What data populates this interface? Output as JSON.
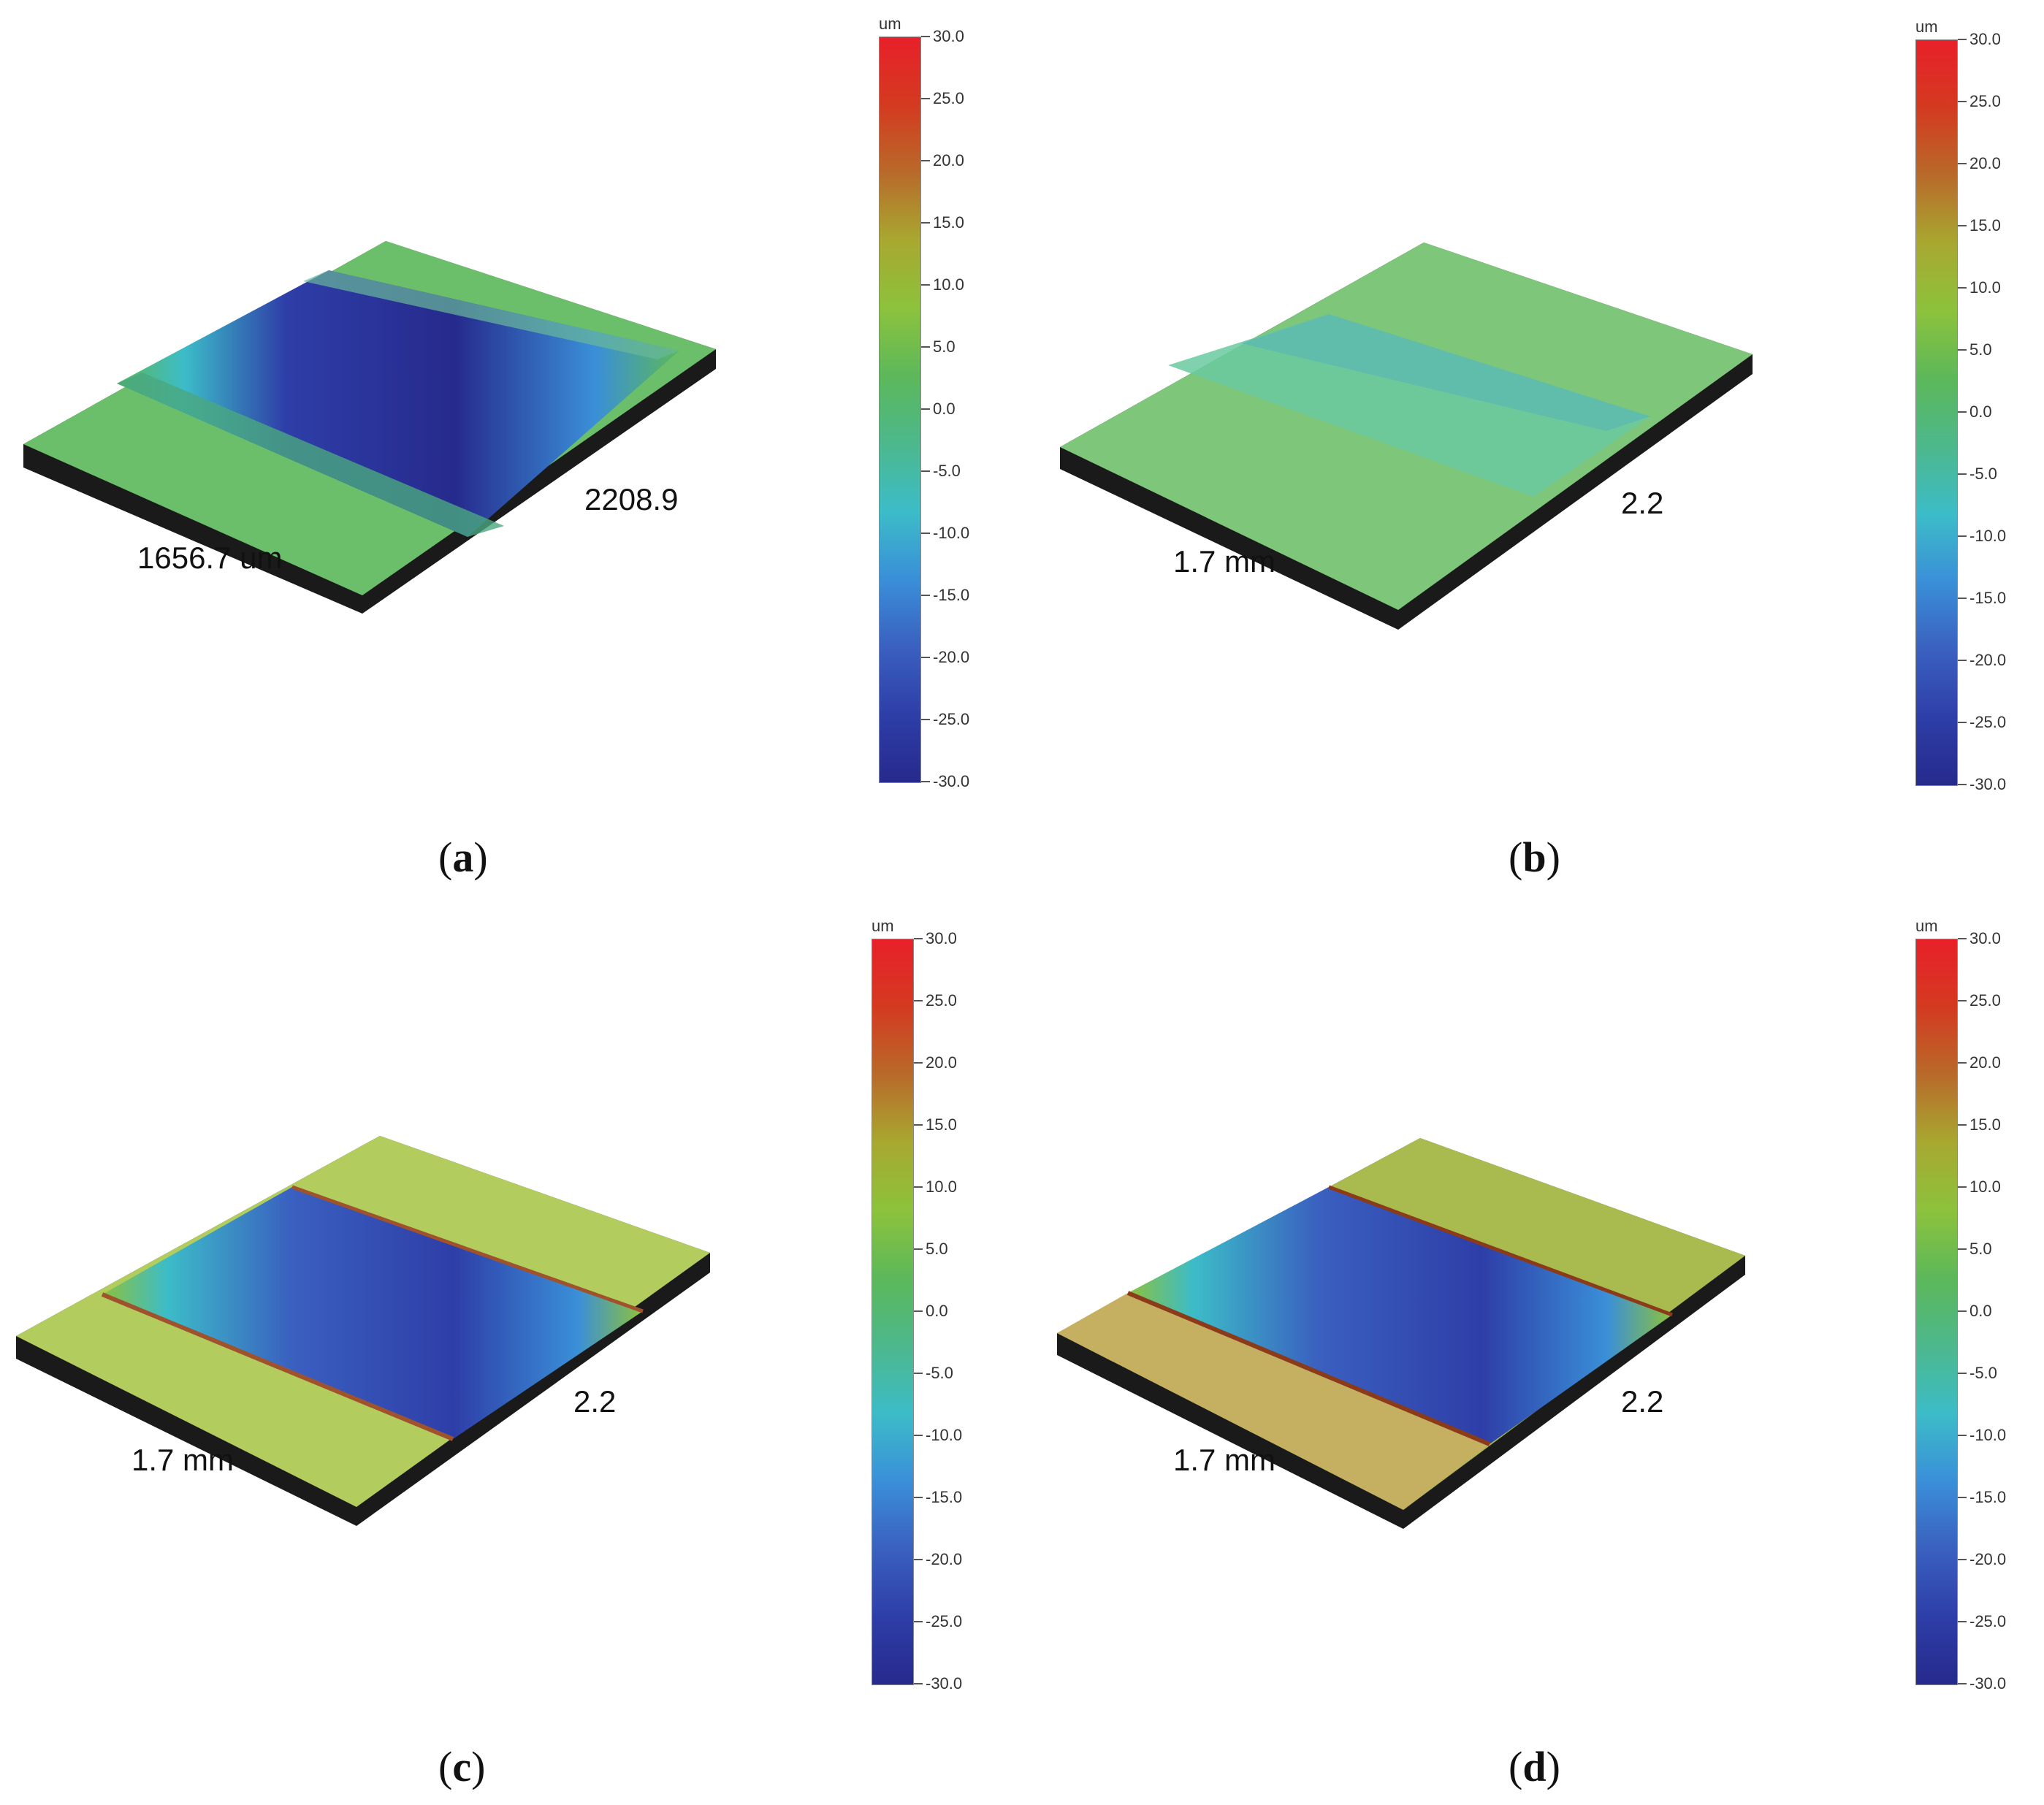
{
  "colorbar": {
    "unit": "um",
    "ticks": [
      "30.0",
      "25.0",
      "20.0",
      "15.0",
      "10.0",
      "5.0",
      "0.0",
      "-5.0",
      "-10.0",
      "-15.0",
      "-20.0",
      "-25.0",
      "-30.0"
    ],
    "colors": [
      "#e8202a",
      "#d43a20",
      "#b86a2a",
      "#a8a830",
      "#8cc23c",
      "#5cb85a",
      "#4cb88c",
      "#3cbcc8",
      "#3a8fd8",
      "#3a60c0",
      "#2e3ea8",
      "#262a8c"
    ]
  },
  "panels": [
    {
      "id": "a",
      "label_open": "(",
      "label_letter": "a",
      "label_close": ")",
      "dim_x": "1656.7 um",
      "dim_y": "2208.9",
      "groove": "deep",
      "base": "green"
    },
    {
      "id": "b",
      "label_open": "(",
      "label_letter": "b",
      "label_close": ")",
      "dim_x": "1.7 mm",
      "dim_y": "2.2",
      "groove": "shallow",
      "base": "green"
    },
    {
      "id": "c",
      "label_open": "(",
      "label_letter": "c",
      "label_close": ")",
      "dim_x": "1.7 mm",
      "dim_y": "2.2",
      "groove": "deep",
      "base": "yellow"
    },
    {
      "id": "d",
      "label_open": "(",
      "label_letter": "d",
      "label_close": ")",
      "dim_x": "1.7 mm",
      "dim_y": "2.2",
      "groove": "deep",
      "base": "olive"
    }
  ]
}
